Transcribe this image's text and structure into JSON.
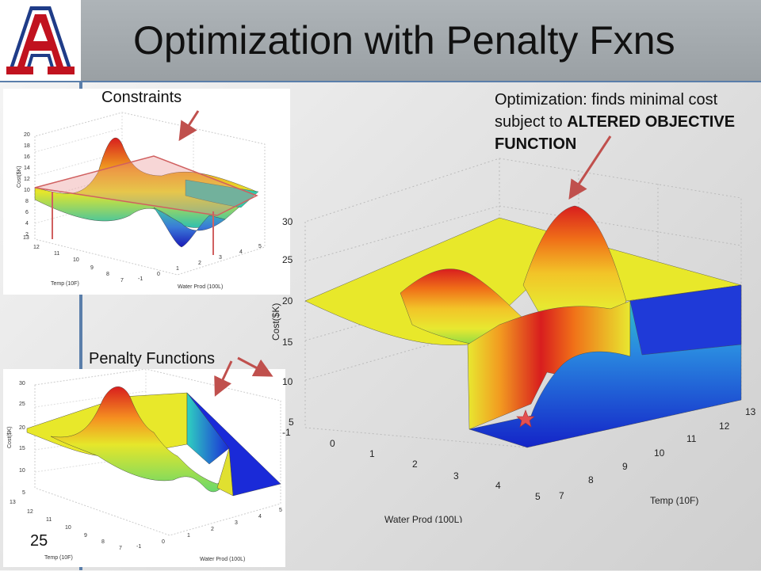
{
  "slide": {
    "title": "Optimization with Penalty Fxns",
    "slide_number": "25",
    "labels": {
      "constraints": "Constraints",
      "penalty_functions": "Penalty Functions",
      "optimization_prefix": "Optimization: finds minimal cost",
      "optimization_line2": "subject to ",
      "optimization_bold1": "ALTERED OBJECTIVE",
      "optimization_bold2": "FUNCTION"
    }
  },
  "colors": {
    "header": "#9ea4a8",
    "accent_blue": "#5a7eaa",
    "arrow": "#c0504d",
    "logo_red": "#c1121f",
    "logo_blue": "#1f3c88"
  },
  "plots": {
    "constraints": {
      "ylabel": "Cost($K)",
      "xlabel": "Water Prod (100L)",
      "zlabel": "Temp (10F)",
      "y_ticks": [
        "2",
        "4",
        "6",
        "8",
        "10",
        "12",
        "14",
        "16",
        "18",
        "20"
      ],
      "x_ticks": [
        "-1",
        "0",
        "1",
        "2",
        "3",
        "4",
        "5"
      ],
      "z_ticks": [
        "7",
        "8",
        "9",
        "10",
        "11",
        "12",
        "13"
      ]
    },
    "penalty": {
      "ylabel": "Cost($K)",
      "xlabel": "Water Prod (100L)",
      "zlabel": "Temp (10F)",
      "y_ticks": [
        "5",
        "10",
        "15",
        "20",
        "25",
        "30"
      ],
      "x_ticks": [
        "-1",
        "0",
        "1",
        "2",
        "3",
        "4",
        "5"
      ],
      "z_ticks": [
        "7",
        "8",
        "9",
        "10",
        "11",
        "12",
        "13"
      ]
    },
    "main": {
      "ylabel": "Cost($K)",
      "xlabel": "Water Prod (100L)",
      "zlabel": "Temp (10F)",
      "y_ticks": [
        "5",
        "10",
        "15",
        "20",
        "25",
        "30"
      ],
      "x_ticks": [
        "-1",
        "0",
        "1",
        "2",
        "3",
        "4",
        "5"
      ],
      "z_ticks": [
        "7",
        "8",
        "9",
        "10",
        "11",
        "12",
        "13"
      ]
    }
  }
}
